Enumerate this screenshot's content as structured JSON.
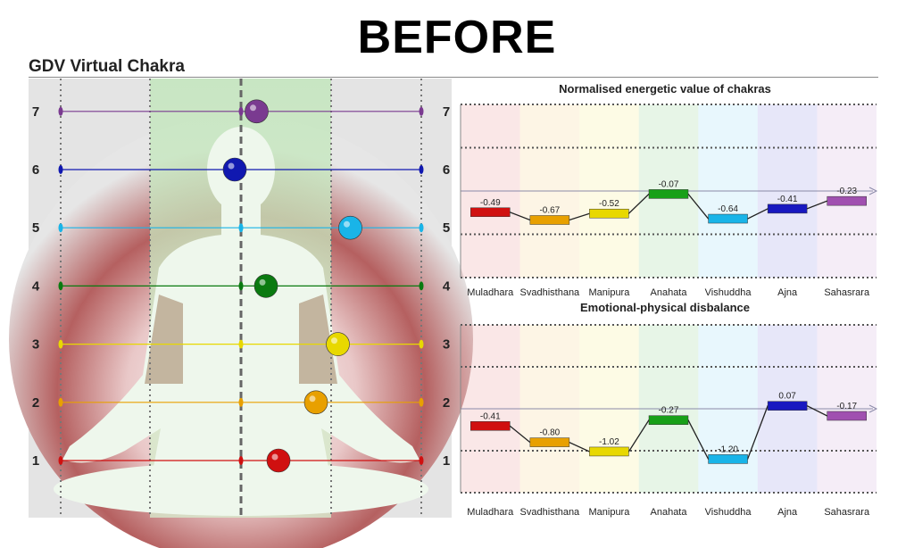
{
  "page": {
    "heading": "BEFORE",
    "panel_title": "GDV Virtual Chakra"
  },
  "chakra_levels": {
    "labels": [
      "1",
      "2",
      "3",
      "4",
      "5",
      "6",
      "7"
    ],
    "colors": [
      "#d01010",
      "#e8a000",
      "#e8d800",
      "#0a7a10",
      "#19b4e8",
      "#1018b0",
      "#7a3a90"
    ],
    "ball_offsets": [
      0.6,
      1.2,
      1.55,
      0.4,
      1.75,
      -0.1,
      0.25
    ]
  },
  "chart_data": [
    {
      "type": "line",
      "title": "Normalised energetic value of chakras",
      "categories": [
        "Muladhara",
        "Svadhisthana",
        "Manipura",
        "Anahata",
        "Vishuddha",
        "Ajna",
        "Sahasrara"
      ],
      "values": [
        -0.49,
        -0.67,
        -0.52,
        -0.07,
        -0.64,
        -0.41,
        -0.23
      ],
      "value_labels": [
        "-0.49",
        "-0.67",
        "-0.52",
        "-0.07",
        "-0.64",
        "-0.41",
        "-0.23"
      ],
      "colors": [
        "#d01010",
        "#e8a000",
        "#e8d800",
        "#18a018",
        "#19b4e8",
        "#1818c0",
        "#a050b0"
      ],
      "ylim": [
        -2,
        2
      ],
      "baseline": 0,
      "grid": true
    },
    {
      "type": "line",
      "title": "Emotional-physical disbalance",
      "categories": [
        "Muladhara",
        "Svadhisthana",
        "Manipura",
        "Anahata",
        "Vishuddha",
        "Ajna",
        "Sahasrara"
      ],
      "values": [
        -0.41,
        -0.8,
        -1.02,
        -0.27,
        -1.2,
        0.07,
        -0.17
      ],
      "value_labels": [
        "-0.41",
        "-0.80",
        "-1.02",
        "-0.27",
        "-1.20",
        "0.07",
        "-0.17"
      ],
      "colors": [
        "#d01010",
        "#e8a000",
        "#e8d800",
        "#18a018",
        "#19b4e8",
        "#1818c0",
        "#a050b0"
      ],
      "ylim": [
        -2,
        2
      ],
      "baseline": 0,
      "grid": true
    }
  ]
}
